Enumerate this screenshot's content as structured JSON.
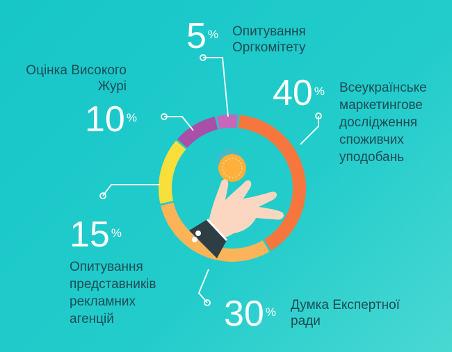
{
  "chart_data": {
    "type": "pie",
    "variant": "donut",
    "start": "top",
    "direction": "clockwise",
    "slices": [
      {
        "value": 40,
        "pct_label": "40",
        "label_lines": [
          "Всеукраїнське",
          "маркетингове",
          "дослідження",
          "споживчих",
          "уподобань"
        ],
        "color": "#f7763e"
      },
      {
        "value": 30,
        "pct_label": "30",
        "label_lines": [
          "Думка Експертної",
          "ради"
        ],
        "color": "#fdb458"
      },
      {
        "value": 15,
        "pct_label": "15",
        "label_lines": [
          "Опитування",
          "представників",
          "рекламних",
          "агенцій"
        ],
        "color": "#f8df3b"
      },
      {
        "value": 10,
        "pct_label": "10",
        "label_lines": [
          "Оцінка Високого",
          "Журі"
        ],
        "color": "#a94ea9"
      },
      {
        "value": 5,
        "pct_label": "5",
        "label_lines": [
          "Опитування",
          "Оргкомітету"
        ],
        "color": "#c867b9"
      }
    ],
    "percent_sign": "%"
  },
  "colors": {
    "background": "#1ec8c9",
    "label_text": "#1d4c55",
    "number_text": "#ffffff"
  },
  "icons": {
    "center": "hand-holding-coin-icon"
  }
}
